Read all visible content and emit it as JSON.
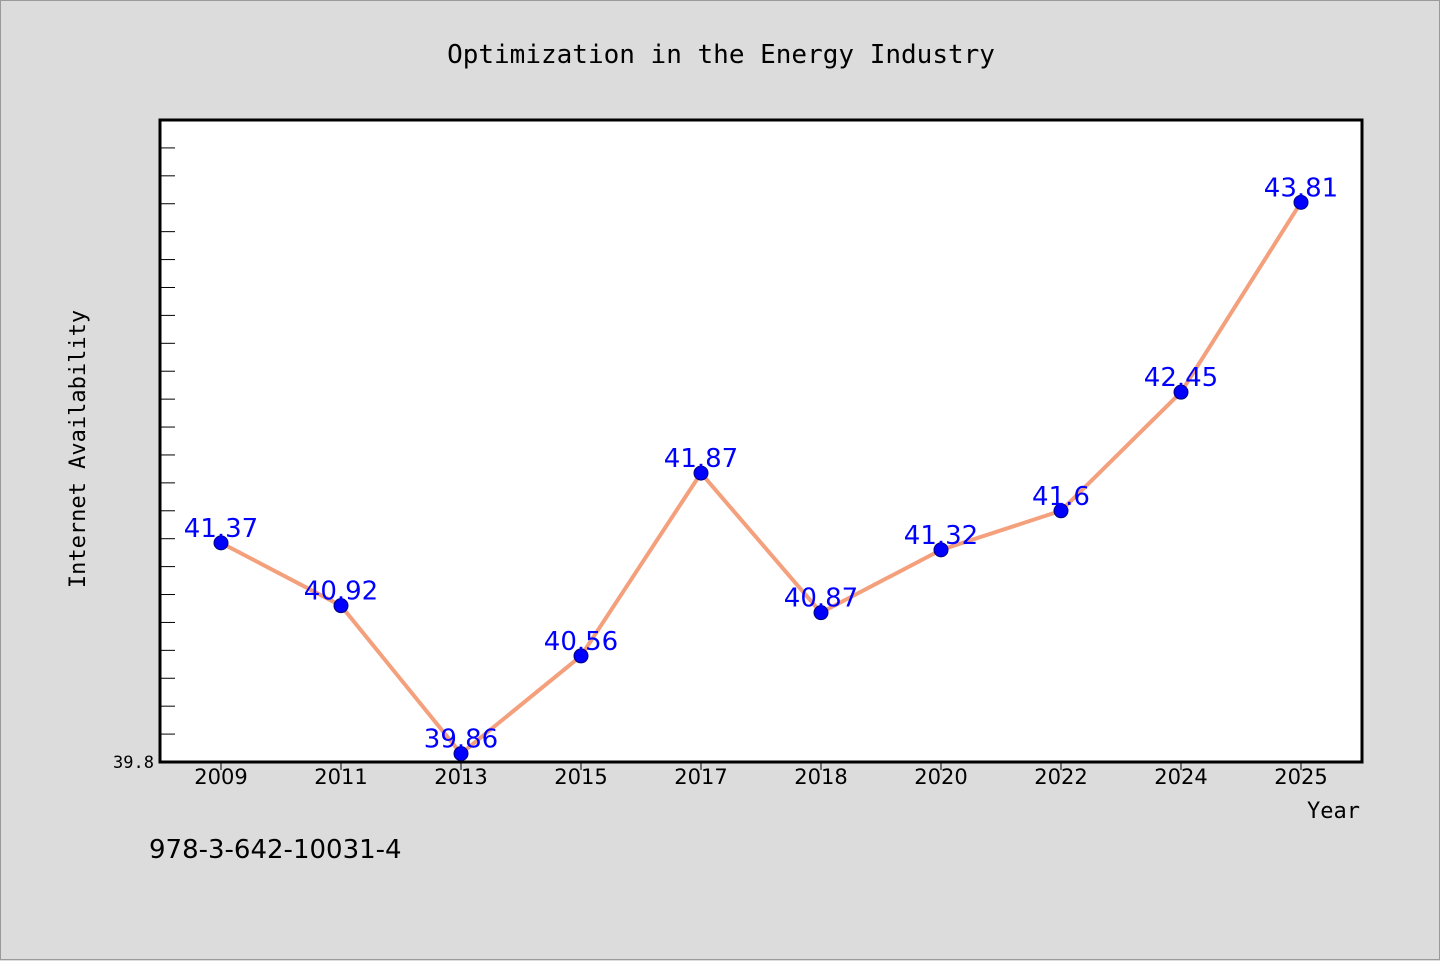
{
  "figure_label": "978-3-642-10031-4",
  "colors": {
    "background": "#dcdcdc",
    "plot_background": "#ffffff",
    "line": "#f4a07c",
    "marker": "#0000ff",
    "data_label": "#0000ff",
    "axis": "#000000"
  },
  "chart_data": {
    "type": "line",
    "title": "Optimization in the Energy Industry",
    "xlabel": "Year",
    "ylabel": "Internet Availability",
    "categories": [
      "2009",
      "2011",
      "2013",
      "2015",
      "2017",
      "2018",
      "2020",
      "2022",
      "2024",
      "2025"
    ],
    "series": [
      {
        "values": [
          41.37,
          40.92,
          39.86,
          40.56,
          41.87,
          40.87,
          41.32,
          41.6,
          42.45,
          43.81
        ]
      }
    ],
    "data_labels": [
      "41.37",
      "40.92",
      "39.86",
      "40.56",
      "41.87",
      "40.87",
      "41.32",
      "41.6",
      "42.45",
      "43.81"
    ],
    "y_tick_labels": [
      "39.8"
    ],
    "ylim": [
      39.8,
      44.4
    ],
    "grid": false,
    "legend": "none"
  }
}
